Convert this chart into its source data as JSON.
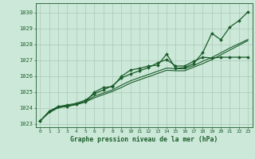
{
  "background_color": "#cce8d8",
  "grid_color": "#aac8b8",
  "line_color": "#1a5c2a",
  "marker_color": "#1a5c2a",
  "xlabel": "Graphe pression niveau de la mer (hPa)",
  "xlim": [
    -0.5,
    23.5
  ],
  "ylim": [
    1022.8,
    1030.6
  ],
  "yticks": [
    1023,
    1024,
    1025,
    1026,
    1027,
    1028,
    1029,
    1030
  ],
  "xticks": [
    0,
    1,
    2,
    3,
    4,
    5,
    6,
    7,
    8,
    9,
    10,
    11,
    12,
    13,
    14,
    15,
    16,
    17,
    18,
    19,
    20,
    21,
    22,
    23
  ],
  "series": [
    {
      "x": [
        0,
        1,
        2,
        3,
        4,
        5,
        6,
        7,
        8,
        9,
        10,
        11,
        12,
        13,
        14,
        15,
        16,
        17,
        18,
        19,
        20,
        21,
        22,
        23
      ],
      "y": [
        1023.2,
        1023.8,
        1024.1,
        1024.1,
        1024.25,
        1024.4,
        1025.0,
        1025.3,
        1025.35,
        1026.0,
        1026.4,
        1026.5,
        1026.65,
        1026.7,
        1027.4,
        1026.5,
        1026.55,
        1026.8,
        1027.5,
        1028.7,
        1028.3,
        1029.1,
        1029.5,
        1030.05
      ],
      "marker": true,
      "linewidth": 0.9
    },
    {
      "x": [
        0,
        1,
        2,
        3,
        4,
        5,
        6,
        7,
        8,
        9,
        10,
        11,
        12,
        13,
        14,
        15,
        16,
        17,
        18,
        19,
        20,
        21,
        22,
        23
      ],
      "y": [
        1023.2,
        1023.8,
        1024.1,
        1024.2,
        1024.3,
        1024.5,
        1024.9,
        1025.15,
        1025.4,
        1025.9,
        1026.15,
        1026.35,
        1026.55,
        1026.85,
        1027.05,
        1026.65,
        1026.65,
        1026.95,
        1027.2,
        1027.15,
        1027.2,
        1027.2,
        1027.2,
        1027.2
      ],
      "marker": true,
      "linewidth": 0.9
    },
    {
      "x": [
        0,
        1,
        2,
        3,
        4,
        5,
        6,
        7,
        8,
        9,
        10,
        11,
        12,
        13,
        14,
        15,
        16,
        17,
        18,
        19,
        20,
        21,
        22,
        23
      ],
      "y": [
        1023.2,
        1023.75,
        1024.05,
        1024.15,
        1024.25,
        1024.42,
        1024.75,
        1024.95,
        1025.15,
        1025.45,
        1025.72,
        1025.92,
        1026.12,
        1026.32,
        1026.52,
        1026.48,
        1026.48,
        1026.68,
        1026.95,
        1027.18,
        1027.48,
        1027.78,
        1028.05,
        1028.32
      ],
      "marker": false,
      "linewidth": 0.8
    },
    {
      "x": [
        0,
        1,
        2,
        3,
        4,
        5,
        6,
        7,
        8,
        9,
        10,
        11,
        12,
        13,
        14,
        15,
        16,
        17,
        18,
        19,
        20,
        21,
        22,
        23
      ],
      "y": [
        1023.2,
        1023.72,
        1024.02,
        1024.12,
        1024.22,
        1024.38,
        1024.65,
        1024.85,
        1025.05,
        1025.3,
        1025.58,
        1025.78,
        1025.98,
        1026.18,
        1026.38,
        1026.35,
        1026.35,
        1026.58,
        1026.8,
        1027.05,
        1027.35,
        1027.65,
        1027.95,
        1028.25
      ],
      "marker": false,
      "linewidth": 0.8
    }
  ]
}
